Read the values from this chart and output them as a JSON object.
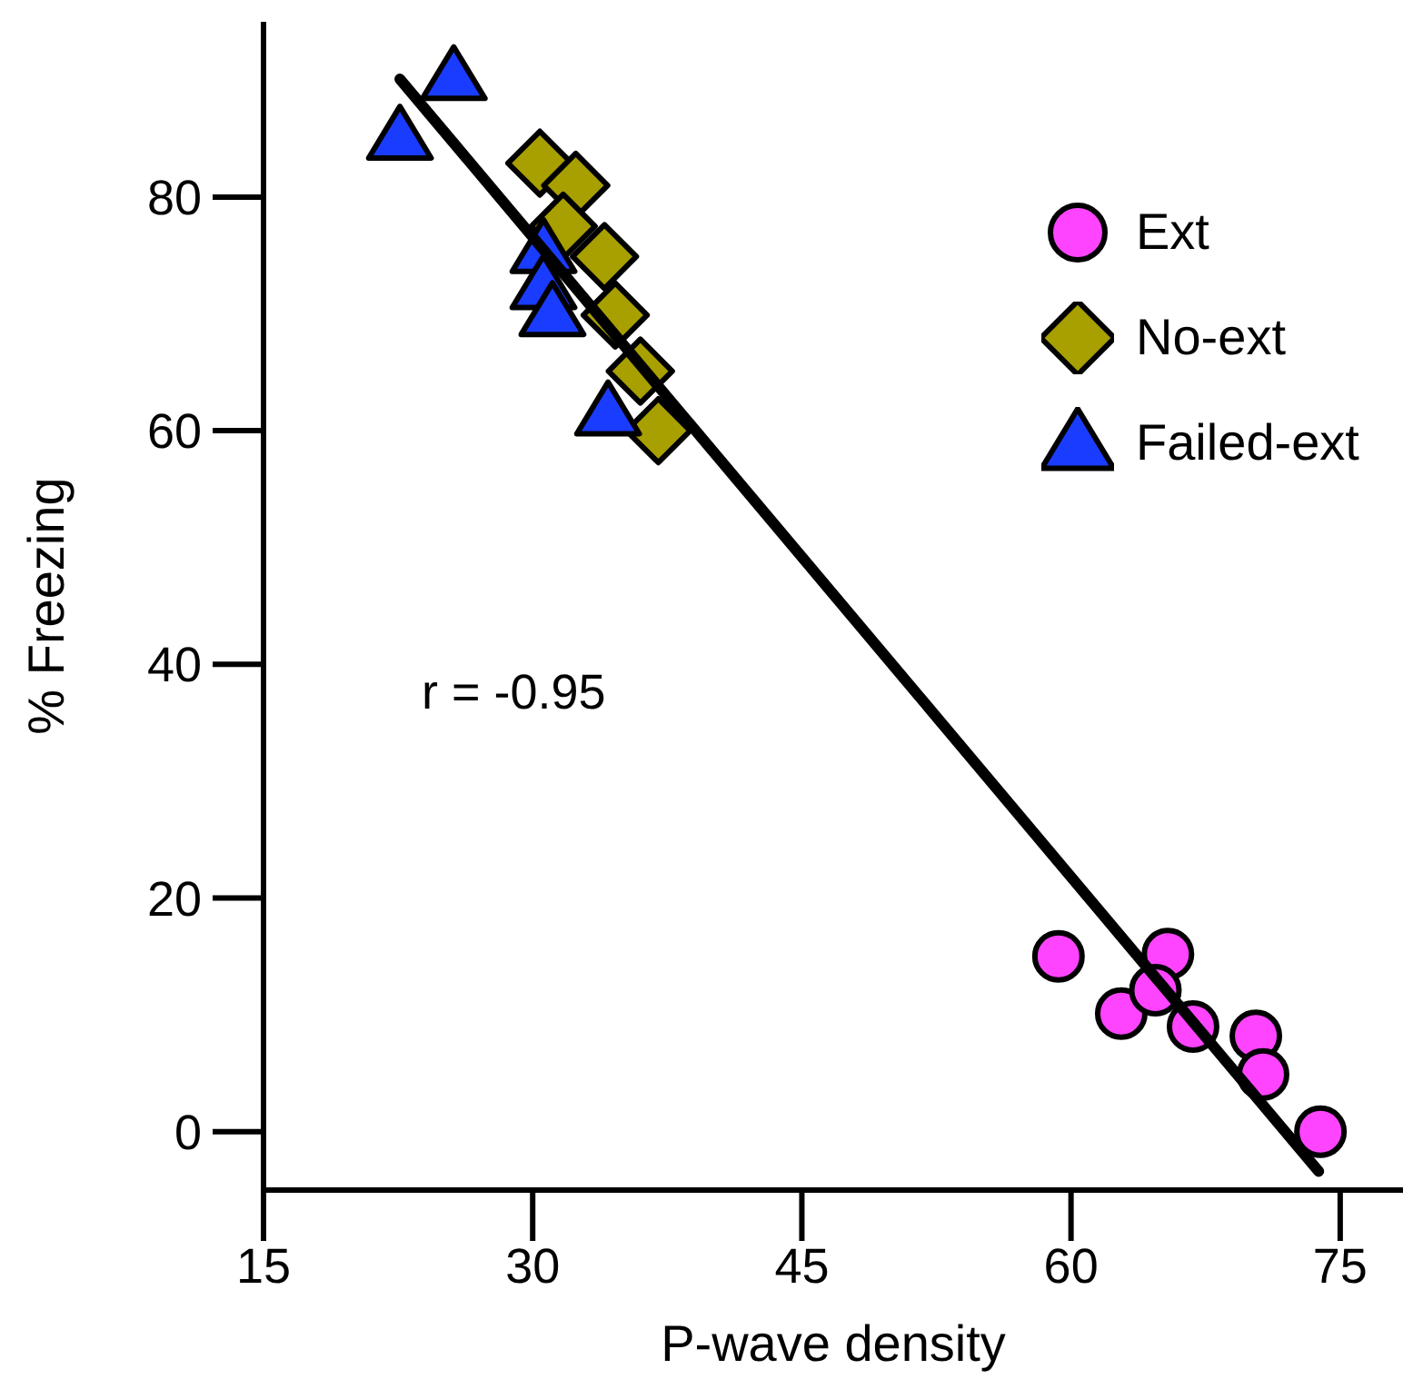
{
  "chart_data": {
    "type": "scatter",
    "xlabel": "P-wave density",
    "ylabel": "% Freezing",
    "xlim": [
      15,
      78.5
    ],
    "ylim": [
      -5,
      95
    ],
    "xticks": [
      15,
      30,
      45,
      60,
      75
    ],
    "yticks": [
      0,
      20,
      40,
      60,
      80
    ],
    "legend": "top right",
    "annotations": [
      "r = -0.95"
    ],
    "series": [
      {
        "name": "Ext",
        "color": "#ff44ff",
        "marker": "circle",
        "x": [
          59.3,
          65.4,
          62.8,
          64.7,
          66.8,
          70.3,
          70.7,
          73.9
        ],
        "values": [
          15.0,
          15.2,
          10.1,
          12.1,
          9.0,
          8.2,
          4.9,
          0
        ]
      },
      {
        "name": "No-ext",
        "color": "#a89f00",
        "marker": "diamond",
        "x": [
          30.4,
          32.4,
          31.7,
          34.0,
          34.6,
          36.0,
          37.0
        ],
        "values": [
          82.9,
          81.0,
          77.5,
          74.9,
          69.9,
          65.1,
          60.0
        ]
      },
      {
        "name": "Failed-ext",
        "color": "#1a3cff",
        "marker": "triangle",
        "x": [
          22.6,
          25.6,
          30.6,
          30.6,
          31.1,
          34.2
        ],
        "values": [
          85.2,
          90.3,
          75.5,
          72.4,
          70.1,
          61.6
        ]
      },
      {
        "type": "line",
        "color": "#000000",
        "line_style": "solid",
        "marker": "none",
        "x": [
          22.6,
          73.8
        ],
        "values": [
          90.1,
          -3.4
        ]
      }
    ]
  }
}
